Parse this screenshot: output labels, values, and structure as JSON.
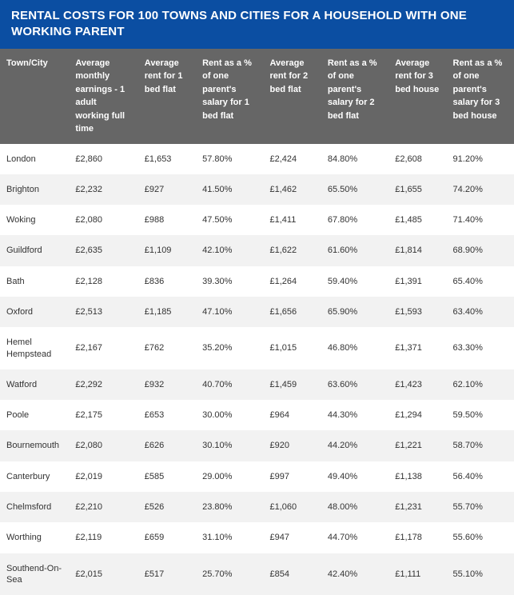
{
  "title": "RENTAL COSTS FOR 100 TOWNS AND CITIES FOR A HOUSEHOLD WITH ONE WORKING PARENT",
  "style": {
    "title_bg": "#0b4ea2",
    "title_color": "#ffffff",
    "header_bg": "#666666",
    "header_color": "#ffffff",
    "row_odd_bg": "#ffffff",
    "row_even_bg": "#f2f2f2",
    "cell_color": "#333333",
    "title_fontsize": 15,
    "header_fontsize": 11,
    "cell_fontsize": 11
  },
  "table": {
    "columns": [
      "Town/City",
      "Average monthly earnings - 1 adult working full time",
      "Average rent for 1 bed flat",
      "Rent as a % of one parent's salary for 1 bed flat",
      "Average rent for 2 bed flat",
      "Rent as a % of one parent's salary for 2 bed flat",
      "Average rent for 3 bed house",
      "Rent as a % of one parent's salary for 3 bed house"
    ],
    "rows": [
      [
        "London",
        "£2,860",
        "£1,653",
        "57.80%",
        "£2,424",
        "84.80%",
        "£2,608",
        "91.20%"
      ],
      [
        "Brighton",
        "£2,232",
        "£927",
        "41.50%",
        "£1,462",
        "65.50%",
        "£1,655",
        "74.20%"
      ],
      [
        "Woking",
        "£2,080",
        "£988",
        "47.50%",
        "£1,411",
        "67.80%",
        "£1,485",
        "71.40%"
      ],
      [
        "Guildford",
        "£2,635",
        "£1,109",
        "42.10%",
        "£1,622",
        "61.60%",
        "£1,814",
        "68.90%"
      ],
      [
        "Bath",
        "£2,128",
        "£836",
        "39.30%",
        "£1,264",
        "59.40%",
        "£1,391",
        "65.40%"
      ],
      [
        "Oxford",
        "£2,513",
        "£1,185",
        "47.10%",
        "£1,656",
        "65.90%",
        "£1,593",
        "63.40%"
      ],
      [
        "Hemel Hempstead",
        "£2,167",
        "£762",
        "35.20%",
        "£1,015",
        "46.80%",
        "£1,371",
        "63.30%"
      ],
      [
        "Watford",
        "£2,292",
        "£932",
        "40.70%",
        "£1,459",
        "63.60%",
        "£1,423",
        "62.10%"
      ],
      [
        "Poole",
        "£2,175",
        "£653",
        "30.00%",
        "£964",
        "44.30%",
        "£1,294",
        "59.50%"
      ],
      [
        "Bournemouth",
        "£2,080",
        "£626",
        "30.10%",
        "£920",
        "44.20%",
        "£1,221",
        "58.70%"
      ],
      [
        "Canterbury",
        "£2,019",
        "£585",
        "29.00%",
        "£997",
        "49.40%",
        "£1,138",
        "56.40%"
      ],
      [
        "Chelmsford",
        "£2,210",
        "£526",
        "23.80%",
        "£1,060",
        "48.00%",
        "£1,231",
        "55.70%"
      ],
      [
        "Worthing",
        "£2,119",
        "£659",
        "31.10%",
        "£947",
        "44.70%",
        "£1,178",
        "55.60%"
      ],
      [
        "Southend-On-Sea",
        "£2,015",
        "£517",
        "25.70%",
        "£854",
        "42.40%",
        "£1,111",
        "55.10%"
      ]
    ]
  }
}
